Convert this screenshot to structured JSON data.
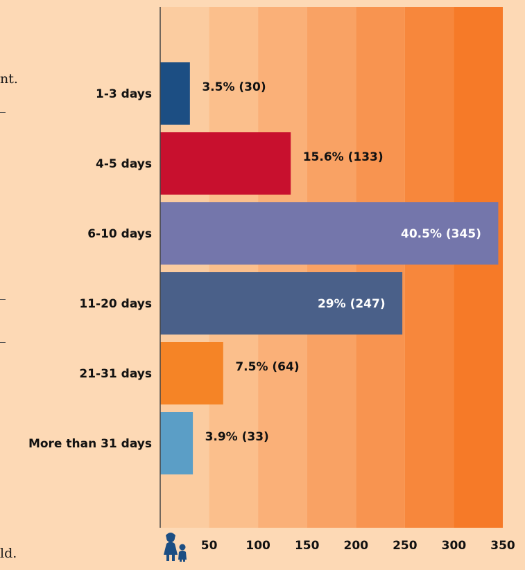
{
  "page": {
    "left_fragments": [
      "nt.",
      "ld."
    ]
  },
  "chart_data": {
    "type": "bar",
    "orientation": "horizontal",
    "categories": [
      "1-3 days",
      "4-5 days",
      "6-10 days",
      "11-20 days",
      "21-31 days",
      "More than 31 days"
    ],
    "values": [
      30,
      133,
      345,
      247,
      64,
      33
    ],
    "labels": [
      "3.5% (30)",
      "15.6% (133)",
      "40.5% (345)",
      "29% (247)",
      "7.5% (64)",
      "3.9% (33)"
    ],
    "label_inside": [
      false,
      false,
      true,
      true,
      false,
      false
    ],
    "colors": [
      "#1c4e83",
      "#c8102e",
      "#7476ab",
      "#4a6089",
      "#f58426",
      "#5b9ec6"
    ],
    "band_colors": [
      "#fbcca0",
      "#fbbf8c",
      "#fab078",
      "#f9a264",
      "#f89450",
      "#f7873c",
      "#f67a28"
    ],
    "xticks": [
      50,
      100,
      150,
      200,
      250,
      300,
      350
    ],
    "xlim": [
      0,
      350
    ],
    "title": "",
    "xlabel": "",
    "ylabel": "",
    "axis_icon": "mother-child-icon",
    "grid": false
  }
}
